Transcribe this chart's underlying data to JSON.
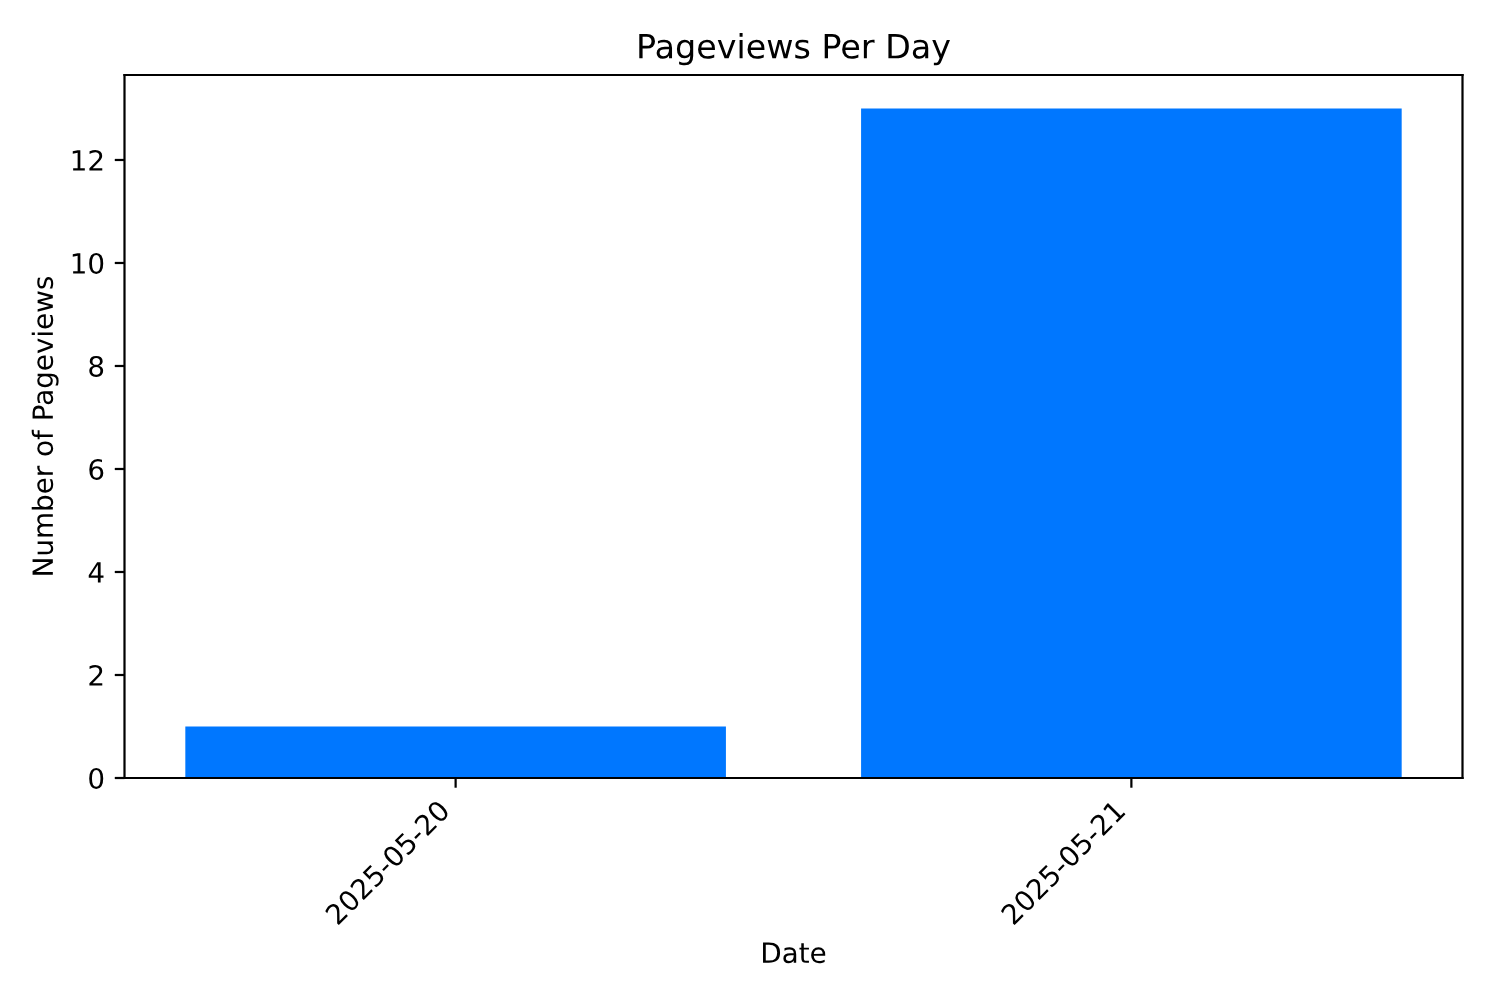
{
  "chart_data": {
    "type": "bar",
    "title": "Pageviews Per Day",
    "xlabel": "Date",
    "ylabel": "Number of Pageviews",
    "categories": [
      "2025-05-20",
      "2025-05-21"
    ],
    "values": [
      1,
      13
    ],
    "color": "#0077ff",
    "ylim": [
      0,
      13.65
    ],
    "yticks": [
      0,
      2,
      4,
      6,
      8,
      10,
      12
    ],
    "grid": false,
    "legend": false
  }
}
